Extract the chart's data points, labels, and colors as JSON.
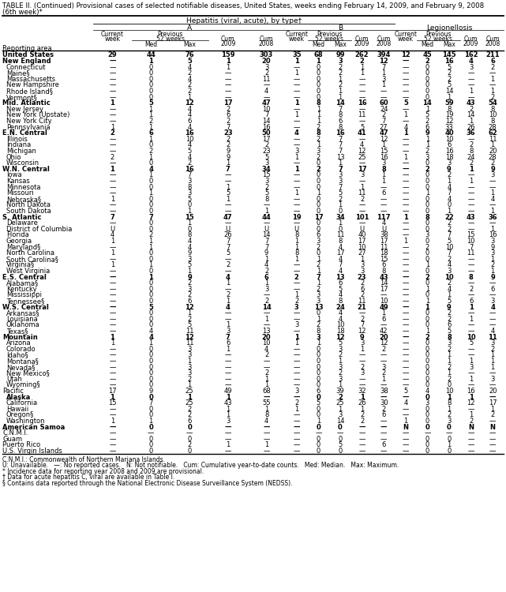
{
  "title1": "TABLE II. (Continued) Provisional cases of selected notifiable diseases, United States, weeks ending February 14, 2009, and February 9, 2008",
  "title2": "(6th week)*",
  "rows": [
    [
      "United States",
      "29",
      "44",
      "76",
      "159",
      "303",
      "35",
      "68",
      "99",
      "262",
      "394",
      "12",
      "45",
      "145",
      "162",
      "211"
    ],
    [
      "New England",
      "—",
      "1",
      "5",
      "1",
      "20",
      "1",
      "1",
      "3",
      "2",
      "12",
      "—",
      "2",
      "16",
      "4",
      "6"
    ],
    [
      "  Connecticut",
      "—",
      "0",
      "4",
      "1",
      "3",
      "—",
      "0",
      "2",
      "1",
      "7",
      "—",
      "0",
      "5",
      "3",
      "2"
    ],
    [
      "  Maine§",
      "—",
      "0",
      "2",
      "—",
      "2",
      "1",
      "0",
      "2",
      "1",
      "1",
      "—",
      "0",
      "2",
      "—",
      "—"
    ],
    [
      "  Massachusetts",
      "—",
      "0",
      "4",
      "—",
      "11",
      "—",
      "0",
      "1",
      "—",
      "3",
      "—",
      "0",
      "2",
      "—",
      "1"
    ],
    [
      "  New Hampshire",
      "—",
      "0",
      "2",
      "—",
      "—",
      "—",
      "0",
      "2",
      "—",
      "1",
      "—",
      "0",
      "5",
      "—",
      "—"
    ],
    [
      "  Rhode Island§",
      "—",
      "0",
      "2",
      "—",
      "4",
      "—",
      "0",
      "1",
      "—",
      "—",
      "—",
      "0",
      "14",
      "1",
      "1"
    ],
    [
      "  Vermont§",
      "—",
      "0",
      "1",
      "—",
      "—",
      "—",
      "0",
      "1",
      "—",
      "—",
      "—",
      "0",
      "1",
      "—",
      "2"
    ],
    [
      "Mid. Atlantic",
      "1",
      "5",
      "12",
      "17",
      "47",
      "1",
      "8",
      "14",
      "16",
      "60",
      "5",
      "14",
      "59",
      "43",
      "54"
    ],
    [
      "  New Jersey",
      "—",
      "1",
      "4",
      "2",
      "10",
      "—",
      "1",
      "7",
      "—",
      "24",
      "—",
      "1",
      "8",
      "2",
      "8"
    ],
    [
      "  New York (Upstate)",
      "—",
      "1",
      "4",
      "6",
      "7",
      "1",
      "1",
      "8",
      "11",
      "2",
      "1",
      "5",
      "19",
      "14",
      "10"
    ],
    [
      "  New York City",
      "—",
      "2",
      "6",
      "2",
      "14",
      "—",
      "1",
      "6",
      "—",
      "7",
      "—",
      "2",
      "12",
      "1",
      "8"
    ],
    [
      "  Pennsylvania",
      "1",
      "1",
      "4",
      "7",
      "16",
      "—",
      "2",
      "8",
      "5",
      "27",
      "4",
      "6",
      "33",
      "26",
      "28"
    ],
    [
      "E.N. Central",
      "2",
      "6",
      "16",
      "23",
      "50",
      "4",
      "8",
      "16",
      "41",
      "47",
      "1",
      "9",
      "40",
      "36",
      "62"
    ],
    [
      "  Illinois",
      "—",
      "1",
      "10",
      "2",
      "17",
      "—",
      "2",
      "7",
      "—",
      "12",
      "—",
      "1",
      "10",
      "—",
      "11"
    ],
    [
      "  Indiana",
      "—",
      "0",
      "4",
      "2",
      "2",
      "—",
      "1",
      "7",
      "4",
      "1",
      "—",
      "1",
      "6",
      "2",
      "1"
    ],
    [
      "  Michigan",
      "—",
      "2",
      "5",
      "9",
      "23",
      "3",
      "3",
      "7",
      "12",
      "15",
      "—",
      "2",
      "16",
      "8",
      "20"
    ],
    [
      "  Ohio",
      "2",
      "1",
      "4",
      "9",
      "5",
      "1",
      "2",
      "13",
      "25",
      "16",
      "1",
      "3",
      "18",
      "24",
      "28"
    ],
    [
      "  Wisconsin",
      "—",
      "0",
      "2",
      "1",
      "3",
      "—",
      "0",
      "1",
      "—",
      "3",
      "—",
      "0",
      "3",
      "2",
      "2"
    ],
    [
      "W.N. Central",
      "1",
      "4",
      "16",
      "7",
      "34",
      "1",
      "2",
      "7",
      "17",
      "8",
      "—",
      "2",
      "9",
      "1",
      "9"
    ],
    [
      "  Iowa",
      "—",
      "1",
      "7",
      "—",
      "15",
      "—",
      "0",
      "3",
      "3",
      "1",
      "—",
      "0",
      "2",
      "—",
      "3"
    ],
    [
      "  Kansas",
      "—",
      "0",
      "3",
      "—",
      "3",
      "—",
      "0",
      "3",
      "—",
      "1",
      "—",
      "0",
      "1",
      "1",
      "—"
    ],
    [
      "  Minnesota",
      "—",
      "0",
      "8",
      "1",
      "2",
      "—",
      "0",
      "7",
      "1",
      "—",
      "—",
      "0",
      "4",
      "—",
      "—"
    ],
    [
      "  Missouri",
      "—",
      "1",
      "3",
      "5",
      "5",
      "1",
      "1",
      "5",
      "11",
      "6",
      "—",
      "1",
      "7",
      "—",
      "1"
    ],
    [
      "  Nebraska§",
      "1",
      "0",
      "5",
      "1",
      "8",
      "—",
      "0",
      "2",
      "2",
      "—",
      "—",
      "0",
      "4",
      "—",
      "4"
    ],
    [
      "  North Dakota",
      "—",
      "0",
      "0",
      "—",
      "—",
      "—",
      "0",
      "1",
      "—",
      "—",
      "—",
      "0",
      "0",
      "—",
      "—"
    ],
    [
      "  South Dakota",
      "—",
      "0",
      "1",
      "—",
      "1",
      "—",
      "0",
      "0",
      "—",
      "—",
      "—",
      "0",
      "1",
      "—",
      "1"
    ],
    [
      "S. Atlantic",
      "7",
      "7",
      "15",
      "47",
      "44",
      "19",
      "17",
      "34",
      "101",
      "117",
      "1",
      "8",
      "22",
      "43",
      "36"
    ],
    [
      "  Delaware",
      "—",
      "0",
      "1",
      "—",
      "—",
      "—",
      "0",
      "1",
      "—",
      "4",
      "—",
      "0",
      "2",
      "—",
      "—"
    ],
    [
      "  District of Columbia",
      "U",
      "0",
      "0",
      "U",
      "U",
      "U",
      "0",
      "0",
      "U",
      "U",
      "—",
      "0",
      "2",
      "—",
      "1"
    ],
    [
      "  Florida",
      "4",
      "2",
      "8",
      "26",
      "14",
      "8",
      "6",
      "11",
      "40",
      "38",
      "—",
      "3",
      "7",
      "15",
      "16"
    ],
    [
      "  Georgia",
      "1",
      "1",
      "4",
      "7",
      "7",
      "1",
      "3",
      "8",
      "17",
      "17",
      "1",
      "0",
      "5",
      "10",
      "3"
    ],
    [
      "  Maryland§",
      "—",
      "1",
      "4",
      "7",
      "7",
      "1",
      "2",
      "4",
      "10",
      "11",
      "—",
      "2",
      "10",
      "7",
      "9"
    ],
    [
      "  North Carolina",
      "1",
      "0",
      "9",
      "5",
      "9",
      "8",
      "0",
      "17",
      "27",
      "18",
      "—",
      "0",
      "7",
      "11",
      "3"
    ],
    [
      "  South Carolina§",
      "—",
      "0",
      "3",
      "—",
      "1",
      "1",
      "1",
      "4",
      "1",
      "15",
      "—",
      "0",
      "2",
      "—",
      "1"
    ],
    [
      "  Virginia§",
      "1",
      "1",
      "5",
      "2",
      "4",
      "—",
      "2",
      "7",
      "3",
      "6",
      "—",
      "1",
      "4",
      "—",
      "2"
    ],
    [
      "  West Virginia",
      "—",
      "0",
      "1",
      "—",
      "2",
      "—",
      "1",
      "4",
      "3",
      "8",
      "—",
      "0",
      "3",
      "—",
      "1"
    ],
    [
      "E.S. Central",
      "—",
      "1",
      "9",
      "4",
      "6",
      "2",
      "7",
      "13",
      "23",
      "43",
      "—",
      "2",
      "10",
      "8",
      "9"
    ],
    [
      "  Alabama§",
      "—",
      "0",
      "2",
      "1",
      "1",
      "—",
      "1",
      "6",
      "2",
      "14",
      "—",
      "0",
      "2",
      "—",
      "—"
    ],
    [
      "  Kentucky",
      "—",
      "0",
      "3",
      "—",
      "3",
      "—",
      "2",
      "5",
      "6",
      "17",
      "—",
      "1",
      "4",
      "2",
      "6"
    ],
    [
      "  Mississippi",
      "—",
      "0",
      "2",
      "2",
      "—",
      "1",
      "3",
      "4",
      "2",
      "—",
      "—",
      "0",
      "1",
      "—",
      "—"
    ],
    [
      "  Tennessee§",
      "—",
      "0",
      "6",
      "1",
      "2",
      "2",
      "3",
      "8",
      "11",
      "10",
      "—",
      "1",
      "5",
      "6",
      "3"
    ],
    [
      "W.S. Central",
      "—",
      "5",
      "12",
      "4",
      "14",
      "3",
      "13",
      "24",
      "21",
      "49",
      "—",
      "1",
      "9",
      "1",
      "4"
    ],
    [
      "  Arkansas§",
      "—",
      "0",
      "1",
      "—",
      "—",
      "—",
      "0",
      "4",
      "—",
      "1",
      "—",
      "0",
      "2",
      "—",
      "—"
    ],
    [
      "  Louisiana",
      "—",
      "0",
      "2",
      "—",
      "1",
      "—",
      "1",
      "4",
      "2",
      "6",
      "—",
      "0",
      "2",
      "1",
      "—"
    ],
    [
      "  Oklahoma",
      "—",
      "0",
      "5",
      "1",
      "—",
      "3",
      "2",
      "10",
      "7",
      "—",
      "—",
      "0",
      "6",
      "—",
      "—"
    ],
    [
      "  Texas§",
      "—",
      "4",
      "11",
      "3",
      "13",
      "—",
      "8",
      "18",
      "12",
      "42",
      "—",
      "1",
      "5",
      "—",
      "4"
    ],
    [
      "Mountain",
      "1",
      "4",
      "12",
      "7",
      "20",
      "1",
      "3",
      "12",
      "9",
      "20",
      "—",
      "2",
      "8",
      "10",
      "11"
    ],
    [
      "  Arizona",
      "1",
      "1",
      "11",
      "6",
      "10",
      "1",
      "1",
      "5",
      "3",
      "12",
      "—",
      "0",
      "3",
      "5",
      "3"
    ],
    [
      "  Colorado",
      "—",
      "0",
      "3",
      "1",
      "4",
      "—",
      "0",
      "3",
      "1",
      "2",
      "—",
      "0",
      "2",
      "—",
      "2"
    ],
    [
      "  Idaho§",
      "—",
      "0",
      "3",
      "—",
      "2",
      "—",
      "0",
      "2",
      "—",
      "—",
      "—",
      "0",
      "1",
      "—",
      "1"
    ],
    [
      "  Montana§",
      "—",
      "0",
      "1",
      "—",
      "—",
      "—",
      "0",
      "1",
      "—",
      "—",
      "—",
      "0",
      "1",
      "1",
      "1"
    ],
    [
      "  Nevada§",
      "—",
      "0",
      "3",
      "—",
      "—",
      "—",
      "0",
      "3",
      "2",
      "3",
      "—",
      "0",
      "2",
      "3",
      "1"
    ],
    [
      "  New Mexico§",
      "—",
      "0",
      "3",
      "—",
      "2",
      "—",
      "0",
      "2",
      "3",
      "2",
      "—",
      "0",
      "1",
      "—",
      "—"
    ],
    [
      "  Utah",
      "—",
      "0",
      "2",
      "—",
      "1",
      "—",
      "0",
      "3",
      "—",
      "1",
      "—",
      "0",
      "2",
      "1",
      "3"
    ],
    [
      "  Wyoming§",
      "—",
      "0",
      "1",
      "—",
      "1",
      "—",
      "0",
      "1",
      "—",
      "—",
      "—",
      "0",
      "0",
      "—",
      "—"
    ],
    [
      "Pacific",
      "17",
      "9",
      "25",
      "49",
      "68",
      "3",
      "6",
      "39",
      "32",
      "38",
      "5",
      "4",
      "10",
      "16",
      "20"
    ],
    [
      "  Alaska",
      "1",
      "0",
      "1",
      "1",
      "—",
      "—",
      "0",
      "2",
      "1",
      "—",
      "—",
      "0",
      "1",
      "1",
      "—"
    ],
    [
      "  California",
      "15",
      "7",
      "25",
      "43",
      "55",
      "2",
      "5",
      "25",
      "26",
      "30",
      "4",
      "3",
      "8",
      "12",
      "17"
    ],
    [
      "  Hawaii",
      "—",
      "0",
      "2",
      "1",
      "1",
      "1",
      "0",
      "1",
      "1",
      "2",
      "—",
      "0",
      "1",
      "—",
      "1"
    ],
    [
      "  Oregon§",
      "—",
      "0",
      "2",
      "1",
      "8",
      "—",
      "0",
      "3",
      "2",
      "6",
      "—",
      "0",
      "2",
      "1",
      "2"
    ],
    [
      "  Washington",
      "1",
      "1",
      "6",
      "3",
      "4",
      "—",
      "1",
      "14",
      "2",
      "—",
      "1",
      "0",
      "3",
      "2",
      "—"
    ],
    [
      "American Samoa",
      "—",
      "0",
      "0",
      "—",
      "—",
      "—",
      "0",
      "0",
      "—",
      "—",
      "N",
      "0",
      "0",
      "N",
      "N"
    ],
    [
      "C.N.M.I.",
      "—",
      "—",
      "—",
      "—",
      "—",
      "—",
      "—",
      "—",
      "—",
      "—",
      "—",
      "—",
      "—",
      "—",
      "—"
    ],
    [
      "Guam",
      "—",
      "0",
      "0",
      "—",
      "—",
      "—",
      "0",
      "0",
      "—",
      "—",
      "—",
      "0",
      "0",
      "—",
      "—"
    ],
    [
      "Puerto Rico",
      "—",
      "0",
      "2",
      "1",
      "1",
      "—",
      "0",
      "5",
      "—",
      "6",
      "—",
      "0",
      "1",
      "—",
      "—"
    ],
    [
      "U.S. Virgin Islands",
      "—",
      "0",
      "0",
      "—",
      "—",
      "—",
      "0",
      "0",
      "—",
      "—",
      "—",
      "0",
      "0",
      "—",
      "—"
    ]
  ],
  "bold_rows": [
    0,
    1,
    8,
    13,
    19,
    27,
    37,
    42,
    47,
    57,
    62
  ],
  "footnotes": [
    "C.N.M.I.: Commonwealth of Northern Mariana Islands.",
    "U: Unavailable.   —: No reported cases.   N: Not notifiable.   Cum: Cumulative year-to-date counts.   Med: Median.   Max: Maximum.",
    "* Incidence data for reporting year 2008 and 2009 are provisional.",
    "† Data for acute hepatitis C, viral are available in Table I.",
    "§ Contains data reported through the National Electronic Disease Surveillance System (NEDSS)."
  ]
}
